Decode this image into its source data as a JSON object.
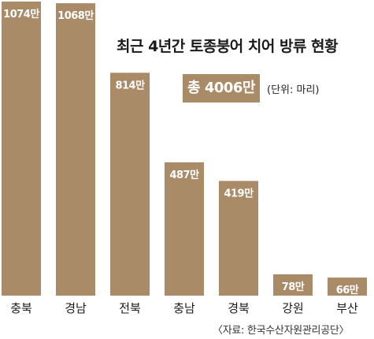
{
  "chart_data": {
    "type": "bar",
    "title": "최근 4년간 토종붕어 치어 방류 현황",
    "categories": [
      "충북",
      "경남",
      "전북",
      "충남",
      "경북",
      "강원",
      "부산"
    ],
    "values": [
      1074,
      1068,
      814,
      487,
      419,
      78,
      66
    ],
    "value_labels": [
      "1074만",
      "1068만",
      "814만",
      "487만",
      "419만",
      "78만",
      "66만"
    ],
    "total_label": "총 4006만",
    "unit_label": "(단위: 마리)",
    "source": "〈자료: 한국수산자원관리공단〉",
    "bar_color": "#a98b68",
    "ylim": [
      0,
      1074
    ],
    "grid": false,
    "legend": "none"
  }
}
